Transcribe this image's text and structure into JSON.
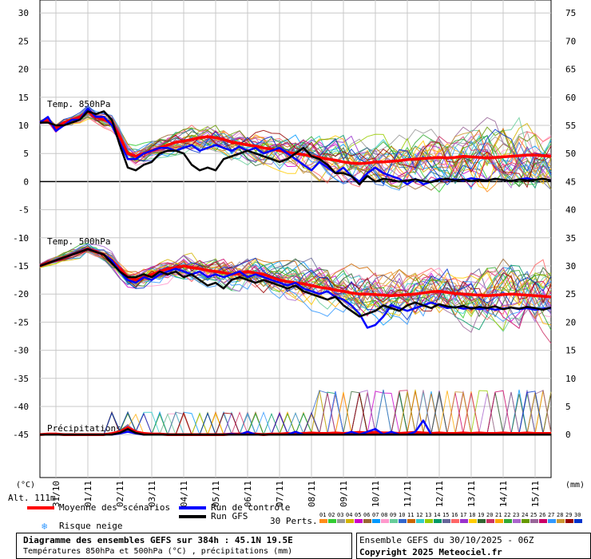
{
  "chart_data": {
    "type": "line",
    "title": "Diagramme des ensembles GEFS sur 384h : 45.1N 19.5E",
    "subtitle": "Températures 850hPa et 500hPa (°C) , précipitations (mm)",
    "left_axis": {
      "unit": "(°C)",
      "ticks": [
        30,
        25,
        20,
        15,
        10,
        5,
        0,
        -5,
        -10,
        -15,
        -20,
        -25,
        -30,
        -35,
        -40,
        -45
      ]
    },
    "right_axis": {
      "unit": "(mm)",
      "ticks": [
        75,
        70,
        65,
        60,
        55,
        50,
        45,
        40,
        35,
        30,
        25,
        20,
        15,
        10,
        5,
        0
      ]
    },
    "x_labels": [
      "31/10",
      "01/11",
      "02/11",
      "03/11",
      "04/11",
      "05/11",
      "06/11",
      "07/11",
      "08/11",
      "09/11",
      "10/11",
      "11/11",
      "12/11",
      "13/11",
      "14/11",
      "15/11"
    ],
    "panels": {
      "t850": "Temp. 850hPa",
      "t500": "Temp. 500hPa",
      "precip": "Précipitations"
    },
    "altitude": "Alt. 111m",
    "time_step_hours": 6,
    "series": [
      {
        "name": "Moyenne des scénarios",
        "color": "#ff0000",
        "panel": "t850",
        "values": [
          10.5,
          11,
          9.5,
          10.5,
          11,
          11.5,
          12.5,
          11.5,
          11,
          10.5,
          8,
          5,
          4.5,
          5,
          5.5,
          6,
          6.5,
          7,
          7.2,
          7.5,
          7.8,
          8,
          7.8,
          7.5,
          7,
          6.8,
          6.5,
          6.3,
          6,
          5.8,
          5.5,
          5.2,
          5,
          4.8,
          4.5,
          4.3,
          4,
          3.8,
          3.5,
          3.3,
          3.2,
          3.3,
          3.5,
          3.5,
          3.6,
          3.7,
          3.9,
          4,
          4.1,
          4.2,
          4.3,
          4.2,
          4.3,
          4.5,
          4.4,
          4.3,
          4.2,
          4.3,
          4.4,
          4.5,
          4.6,
          4.7,
          4.7,
          4.6,
          4.5
        ]
      },
      {
        "name": "Run de contrôle",
        "color": "#0000ff",
        "panel": "t850",
        "values": [
          10.5,
          11.5,
          9,
          10,
          11,
          11,
          13,
          11.5,
          11.5,
          10,
          7,
          4,
          4,
          5,
          5.5,
          6,
          6,
          5.5,
          6,
          6.5,
          5.5,
          6,
          6.5,
          6,
          5.5,
          6.2,
          5.5,
          6,
          5,
          5.5,
          6,
          5,
          4,
          3,
          2,
          3.5,
          2.5,
          1.5,
          2.5,
          1,
          0,
          1.5,
          2.5,
          1.5,
          1,
          0.5,
          -0.5,
          0.5,
          -0.5,
          0,
          0.5,
          0.3,
          0.4,
          0.2,
          0.6,
          0.4,
          0.2,
          0.5,
          0.3,
          0.1,
          0.4,
          0.6,
          0.3,
          0.5,
          0.2
        ]
      },
      {
        "name": "Run GFS",
        "color": "#000000",
        "panel": "t850",
        "values": [
          10.5,
          10.5,
          10,
          10,
          10.5,
          11,
          12.5,
          12,
          12.5,
          11,
          6.5,
          2.5,
          2,
          3,
          3.5,
          5,
          5.5,
          5.5,
          5,
          3,
          2,
          2.5,
          2,
          4,
          4.5,
          5,
          5.5,
          5,
          4.5,
          4,
          3.5,
          4,
          5,
          6,
          4.5,
          4,
          3,
          1.5,
          1.5,
          1,
          -0.5,
          1,
          0,
          0.5,
          0.3,
          0,
          0.2,
          0.4,
          0.1,
          -0.1,
          0.3,
          0.5,
          0.2,
          0.4,
          0.1,
          0.3,
          0.2,
          0.5,
          0.3,
          0.1,
          0.4,
          0.2,
          0.3,
          0.5,
          0.2
        ]
      },
      {
        "name": "Moyenne des scénarios",
        "color": "#ff0000",
        "panel": "t500",
        "values": [
          -15,
          -14.5,
          -14,
          -13.5,
          -13,
          -12.5,
          -12,
          -12.5,
          -13,
          -14,
          -15.5,
          -17,
          -17.5,
          -17,
          -16.5,
          -16,
          -15.5,
          -15.3,
          -15,
          -15.3,
          -15.5,
          -15.8,
          -16,
          -16.2,
          -16.5,
          -16.3,
          -16,
          -16.3,
          -16.5,
          -17,
          -17.5,
          -17.8,
          -18,
          -18.2,
          -18.5,
          -18.8,
          -19,
          -19.3,
          -19.5,
          -19.8,
          -20,
          -20,
          -20.1,
          -20.2,
          -20.3,
          -20.2,
          -20.1,
          -20,
          -19.8,
          -19.6,
          -19.5,
          -19.7,
          -19.9,
          -20,
          -20.1,
          -20.2,
          -20.3,
          -20.2,
          -20.1,
          -20,
          -20.1,
          -20.2,
          -20.3,
          -20.4,
          -20.5
        ]
      },
      {
        "name": "Run de contrôle",
        "color": "#0000ff",
        "panel": "t500",
        "values": [
          -15,
          -14.5,
          -14,
          -13.5,
          -13,
          -12.5,
          -12,
          -12.5,
          -13,
          -14,
          -16,
          -17.5,
          -18,
          -17,
          -17.5,
          -16.5,
          -16,
          -15.5,
          -16,
          -16.5,
          -16,
          -17,
          -16.5,
          -17,
          -16.5,
          -16,
          -17,
          -16.5,
          -17,
          -17.5,
          -18,
          -18.5,
          -18,
          -19,
          -19.5,
          -20,
          -19.5,
          -20.5,
          -21,
          -22,
          -23.5,
          -26,
          -25.5,
          -24,
          -22,
          -22.5,
          -23,
          -22.5,
          -22,
          -21.5,
          -22,
          -22.5,
          -22.3,
          -22.6,
          -22.4,
          -22.7,
          -22.5,
          -22.8,
          -22.6,
          -22.4,
          -22.7,
          -22.5,
          -22.8,
          -22.6,
          -22.5
        ]
      },
      {
        "name": "Run GFS",
        "color": "#000000",
        "panel": "t500",
        "values": [
          -15,
          -14.5,
          -14,
          -13.5,
          -13,
          -12.5,
          -12,
          -12.5,
          -13,
          -14.5,
          -16,
          -17,
          -17,
          -16.5,
          -17,
          -16,
          -16.5,
          -16,
          -17,
          -16.5,
          -17.5,
          -18.5,
          -18,
          -19,
          -17.5,
          -17,
          -17.5,
          -18,
          -17.5,
          -18,
          -18.5,
          -19,
          -18.5,
          -19.5,
          -20,
          -20.5,
          -21,
          -20.5,
          -22,
          -23,
          -24,
          -23.5,
          -23,
          -22,
          -22.5,
          -23,
          -22,
          -21.5,
          -22,
          -22.5,
          -21.8,
          -22.2,
          -22.4,
          -22.1,
          -22.6,
          -22.3,
          -22.5,
          -22.2,
          -22.7,
          -22.4,
          -22.6,
          -22.3,
          -22.5,
          -22.8,
          -22.4
        ]
      },
      {
        "name": "Moyenne des scénarios",
        "color": "#ff0000",
        "panel": "precip",
        "values": [
          0,
          0.1,
          0.1,
          0,
          0,
          0,
          0,
          0,
          0,
          0.2,
          0.5,
          1.2,
          0.5,
          0.2,
          0.1,
          0.1,
          0,
          0,
          0,
          0,
          0,
          0,
          0,
          0,
          0.1,
          0.1,
          0.2,
          0.1,
          0,
          0.1,
          0.1,
          0.2,
          0.1,
          0.2,
          0.3,
          0.2,
          0.2,
          0.3,
          0.2,
          0.3,
          0.4,
          0.3,
          0.4,
          0.3,
          0.3,
          0.2,
          0.3,
          0.4,
          0.3,
          0.2,
          0.3,
          0.2,
          0.2,
          0.3,
          0.2,
          0.3,
          0.2,
          0.2,
          0.3,
          0.2,
          0.2,
          0.3,
          0.2,
          0.2,
          0.2
        ]
      },
      {
        "name": "Run de contrôle",
        "color": "#0000ff",
        "panel": "precip",
        "values": [
          0,
          0,
          0,
          0,
          0,
          0,
          0,
          0,
          0,
          0,
          0.2,
          0.5,
          0.2,
          0,
          0,
          0,
          0,
          0,
          0,
          0,
          0,
          0,
          0,
          0,
          0.1,
          0,
          0.5,
          0,
          0,
          0,
          0,
          0,
          0.5,
          0,
          0,
          0,
          0,
          0,
          0,
          0.5,
          0,
          0.5,
          1,
          0,
          0.5,
          0,
          0,
          0.5,
          2.5,
          0,
          0,
          0,
          0,
          0,
          0,
          0,
          0,
          0,
          0,
          0,
          0,
          0,
          0,
          0,
          0
        ]
      },
      {
        "name": "Run GFS",
        "color": "#000000",
        "panel": "precip",
        "values": [
          0,
          0,
          0,
          0,
          0,
          0,
          0,
          0,
          0,
          0,
          0.3,
          1,
          0.3,
          0,
          0,
          0,
          0,
          0,
          0,
          0,
          0,
          0,
          0,
          0,
          0,
          0,
          0,
          0,
          0,
          0,
          0,
          0,
          0,
          0,
          0,
          0,
          0,
          0,
          0,
          0,
          0,
          0,
          0,
          0,
          0,
          0,
          0,
          0,
          0,
          0,
          0,
          0,
          0,
          0,
          0,
          0,
          0,
          0,
          0,
          0,
          0,
          0,
          0,
          0,
          0
        ]
      }
    ],
    "perturbations_count": 30
  },
  "legend": {
    "mean": "Moyenne des scénarios",
    "control": "Run de contrôle",
    "gfs": "Run GFS",
    "snow": "Risque neige",
    "perts": "30 Perts.",
    "pert_ids": [
      "01",
      "02",
      "03",
      "04",
      "05",
      "06",
      "07",
      "08",
      "09",
      "10",
      "11",
      "12",
      "13",
      "14",
      "15",
      "16",
      "17",
      "18",
      "19",
      "20",
      "21",
      "22",
      "23",
      "24",
      "25",
      "26",
      "27",
      "28",
      "29",
      "30"
    ],
    "pert_colors": [
      "#ff8c1a",
      "#33cc33",
      "#999999",
      "#d4b400",
      "#cc00cc",
      "#996633",
      "#0099ff",
      "#ff99cc",
      "#66cc99",
      "#3366cc",
      "#cc6600",
      "#33cccc",
      "#99cc00",
      "#009966",
      "#666699",
      "#ff6666",
      "#9933cc",
      "#ffcc00",
      "#336633",
      "#cc3366",
      "#ffaa00",
      "#33aa33",
      "#aa66cc",
      "#669900",
      "#996699",
      "#cc0066",
      "#3399ff",
      "#cc9933",
      "#990000",
      "#0033cc"
    ]
  },
  "info": {
    "title": "Diagramme des ensembles GEFS sur 384h : 45.1N 19.5E",
    "subtitle": "Températures 850hPa et 500hPa (°C) , précipitations (mm)",
    "run": "Ensemble GEFS du 30/10/2025 - 06Z",
    "copyright": "Copyright 2025 Meteociel.fr"
  }
}
